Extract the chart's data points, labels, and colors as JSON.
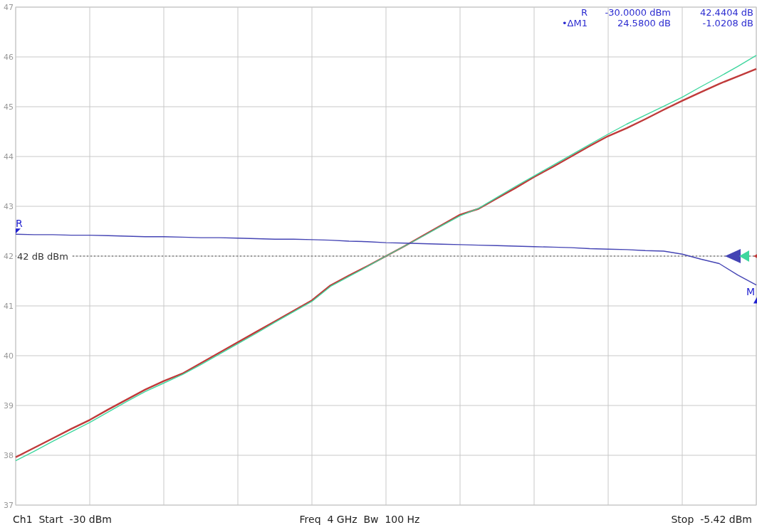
{
  "chart_data": {
    "type": "line",
    "categories": [
      null,
      null,
      null,
      null,
      null,
      null,
      null,
      null,
      null,
      null,
      null,
      null,
      null,
      null,
      null,
      null,
      null,
      null,
      null,
      null,
      null,
      null,
      null,
      null,
      null,
      null,
      null,
      null,
      null,
      null,
      null,
      null,
      null,
      null,
      null,
      null,
      null,
      null,
      null,
      null,
      null
    ],
    "ylim": [
      37,
      47
    ],
    "yticks": [
      37,
      38,
      39,
      40,
      41,
      42,
      43,
      44,
      45,
      46,
      47
    ],
    "tick_labels": "y",
    "grid": true,
    "line_style": "solid",
    "series": [
      {
        "color": "#c03a3a",
        "values": [
          37.96,
          38.15,
          38.34,
          38.53,
          38.71,
          38.92,
          39.12,
          39.32,
          39.49,
          39.64,
          39.85,
          40.06,
          40.27,
          40.48,
          40.69,
          40.9,
          41.11,
          41.41,
          41.61,
          41.8,
          42.0,
          42.2,
          42.41,
          42.62,
          42.83,
          42.95,
          43.16,
          43.37,
          43.59,
          43.79,
          44.0,
          44.21,
          44.41,
          44.57,
          44.75,
          44.94,
          45.12,
          45.29,
          45.46,
          45.61,
          45.76
        ]
      },
      {
        "color": "#3ed69e",
        "values": [
          37.89,
          38.08,
          38.28,
          38.47,
          38.66,
          38.87,
          39.08,
          39.28,
          39.45,
          39.62,
          39.82,
          40.03,
          40.24,
          40.45,
          40.67,
          40.88,
          41.09,
          41.39,
          41.59,
          41.79,
          42.0,
          42.2,
          42.4,
          42.61,
          42.81,
          42.96,
          43.18,
          43.4,
          43.61,
          43.82,
          44.03,
          44.24,
          44.45,
          44.65,
          44.83,
          45.01,
          45.19,
          45.4,
          45.6,
          45.81,
          46.03
        ]
      },
      {
        "color": "#4444b4",
        "values": [
          42.44,
          42.43,
          42.43,
          42.42,
          42.42,
          42.41,
          42.4,
          42.39,
          42.39,
          42.38,
          42.37,
          42.37,
          42.36,
          42.35,
          42.34,
          42.34,
          42.33,
          42.32,
          42.3,
          42.29,
          42.27,
          42.26,
          42.25,
          42.24,
          42.23,
          42.22,
          42.21,
          42.2,
          42.19,
          42.18,
          42.17,
          42.15,
          42.14,
          42.13,
          42.11,
          42.1,
          42.04,
          41.94,
          41.85,
          41.62,
          41.42
        ]
      }
    ],
    "ref_lines": [
      {
        "axis": "y",
        "value": 42,
        "label": "42 dB dBm",
        "color": "#555555",
        "line_style": "dotted"
      }
    ],
    "annotations": [
      {
        "text": "R",
        "y": 42.44
      },
      "M",
      "R  -30.0000 dBm  42.4404 dB",
      "•ΔM1  24.5800 dB  -1.0208 dB",
      "Ch1  Start  -30 dBm",
      "Freq  4 GHz  Bw  100 Hz",
      "Stop  -5.42 dBm"
    ]
  }
}
